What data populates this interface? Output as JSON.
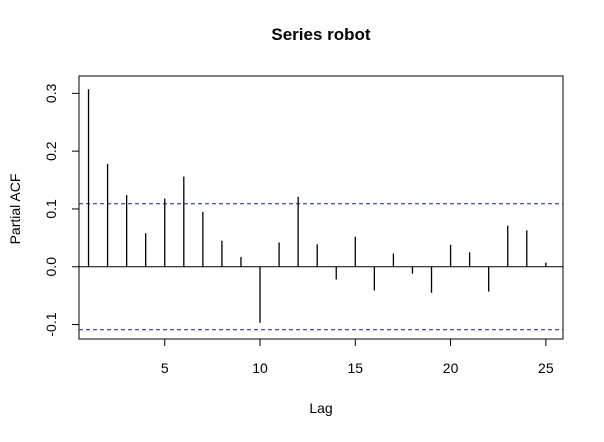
{
  "chart_data": {
    "type": "bar",
    "title": "Series  robot",
    "xlabel": "Lag",
    "ylabel": "Partial ACF",
    "x": [
      1,
      2,
      3,
      4,
      5,
      6,
      7,
      8,
      9,
      10,
      11,
      12,
      13,
      14,
      15,
      16,
      17,
      18,
      19,
      20,
      21,
      22,
      23,
      24,
      25
    ],
    "values": [
      0.307,
      0.178,
      0.124,
      0.058,
      0.118,
      0.156,
      0.095,
      0.045,
      0.017,
      -0.097,
      0.042,
      0.121,
      0.039,
      -0.022,
      0.052,
      -0.041,
      0.023,
      -0.012,
      -0.045,
      0.038,
      0.025,
      -0.043,
      0.071,
      0.063,
      0.007
    ],
    "confidence_bound": 0.109,
    "xlim": [
      0.5,
      25.9
    ],
    "ylim": [
      -0.125,
      0.33
    ],
    "x_ticks": [
      5,
      10,
      15,
      20,
      25
    ],
    "x_tick_labels": [
      "5",
      "10",
      "15",
      "20",
      "25"
    ],
    "y_ticks": [
      -0.1,
      0.0,
      0.1,
      0.2,
      0.3
    ],
    "y_tick_labels": [
      "-0.1",
      "0.0",
      "0.1",
      "0.2",
      "0.3"
    ],
    "grid": false,
    "colors": {
      "bars": "#000000",
      "bound_line": "#1a1aa6",
      "zero_line": "#000000"
    }
  }
}
